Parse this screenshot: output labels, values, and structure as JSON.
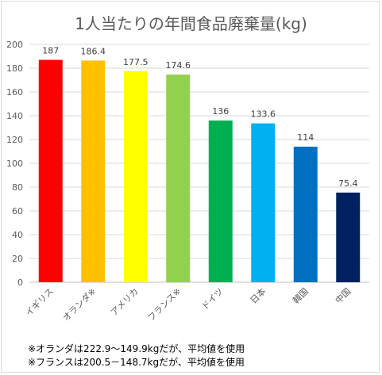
{
  "chart_data": {
    "type": "bar",
    "title": "1人当たりの年間食品廃棄量(kg)",
    "xlabel": "",
    "ylabel": "",
    "categories": [
      "イギリス",
      "オランダ※",
      "アメリカ",
      "フランス※",
      "ドイツ",
      "日本",
      "韓国",
      "中国"
    ],
    "values": [
      187,
      186.4,
      177.5,
      174.6,
      136,
      133.6,
      114,
      75.4
    ],
    "data_labels": [
      "187",
      "186.4",
      "177.5",
      "174.6",
      "136",
      "133.6",
      "114",
      "75.4"
    ],
    "colors": [
      "#ff0000",
      "#ffc000",
      "#ffff00",
      "#92d050",
      "#00b050",
      "#00b0f0",
      "#0070c0",
      "#002060"
    ],
    "ylim": [
      0,
      200
    ],
    "yticks": [
      0,
      20,
      40,
      60,
      80,
      100,
      120,
      140,
      160,
      180,
      200
    ],
    "grid": true,
    "legend": "none"
  },
  "notes": [
    "※オランダは222.9～149.9kgだが、平均値を使用",
    "※フランスは200.5－148.7kgだが、平均値を使用"
  ]
}
